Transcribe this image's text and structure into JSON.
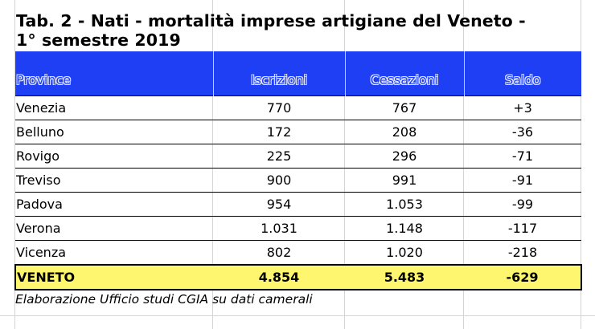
{
  "title_line1": "Tab. 2 - Nati - mortalità imprese artigiane del Veneto -",
  "title_line2": "1° semestre 2019",
  "columns": [
    "Province",
    "Iscrizioni",
    "Cessazioni",
    "Saldo"
  ],
  "rows": [
    {
      "province": "Venezia",
      "iscrizioni": "770",
      "cessazioni": "767",
      "saldo": "+3"
    },
    {
      "province": "Belluno",
      "iscrizioni": "172",
      "cessazioni": "208",
      "saldo": "-36"
    },
    {
      "province": "Rovigo",
      "iscrizioni": "225",
      "cessazioni": "296",
      "saldo": "-71"
    },
    {
      "province": "Treviso",
      "iscrizioni": "900",
      "cessazioni": "991",
      "saldo": "-91"
    },
    {
      "province": "Padova",
      "iscrizioni": "954",
      "cessazioni": "1.053",
      "saldo": "-99"
    },
    {
      "province": "Verona",
      "iscrizioni": "1.031",
      "cessazioni": "1.148",
      "saldo": "-117"
    },
    {
      "province": "Vicenza",
      "iscrizioni": "802",
      "cessazioni": "1.020",
      "saldo": "-218"
    }
  ],
  "total": {
    "province": "VENETO",
    "iscrizioni": "4.854",
    "cessazioni": "5.483",
    "saldo": "-629"
  },
  "source": "Elaborazione Ufficio studi CGIA su dati camerali",
  "colors": {
    "header_blue": "#1f3ff5",
    "total_yellow": "#fdf66e"
  }
}
